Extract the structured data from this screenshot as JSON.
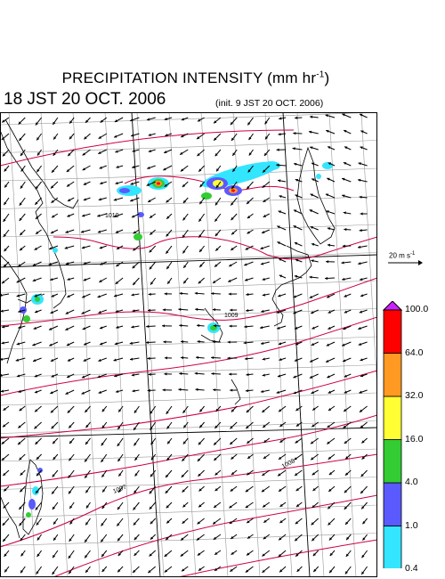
{
  "header": {
    "title_main": "PRECIPITATION INTENSITY (mm hr",
    "title_sup": "-1",
    "title_end": ")",
    "valid_time": "18 JST 20 OCT. 2006",
    "init_time": "(init. 9 JST 20 OCT. 2006)"
  },
  "reference_vector": {
    "label_main": "20 m s",
    "label_sup": "-1"
  },
  "color_scale": {
    "colors": [
      "#33e5ff",
      "#5a5aff",
      "#33cc33",
      "#ffff33",
      "#ff9922",
      "#ff0000",
      "#cc22ff"
    ],
    "labels": [
      "0.4",
      "1.0",
      "4.0",
      "16.0",
      "32.0",
      "64.0",
      "100.0"
    ]
  },
  "isobar_labels": [
    "1010",
    "1009",
    "1008",
    "1007"
  ],
  "map_colors": {
    "isobar": "#cc0044",
    "coast": "#000000",
    "grid": "#999999"
  }
}
